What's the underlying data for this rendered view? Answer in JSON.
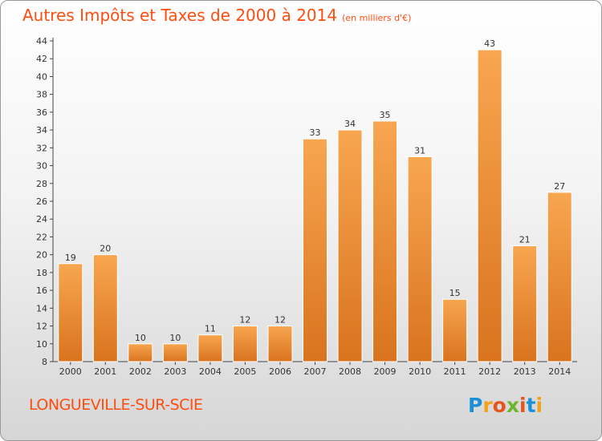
{
  "title": "Autres Impôts et Taxes de 2000 à 2014",
  "unit": "(en milliers d'€)",
  "place": "LONGUEVILLE-SUR-SCIE",
  "logo": {
    "letters": [
      "P",
      "r",
      "o",
      "x",
      "i",
      "t",
      "i"
    ],
    "colors": [
      "#1b8fd8",
      "#f3a21c",
      "#e8541e",
      "#6cb52d",
      "#e8541e",
      "#1b8fd8",
      "#f3a21c"
    ]
  },
  "colors": {
    "title": "#ff4d10",
    "bar_light": "#f8a650",
    "bar_dark": "#d9731e"
  },
  "chart_data": {
    "type": "bar",
    "title": "Autres Impôts et Taxes de 2000 à 2014",
    "categories": [
      "2000",
      "2001",
      "2002",
      "2003",
      "2004",
      "2005",
      "2006",
      "2007",
      "2008",
      "2009",
      "2010",
      "2011",
      "2012",
      "2013",
      "2014"
    ],
    "values": [
      19,
      20,
      10,
      10,
      11,
      12,
      12,
      33,
      34,
      35,
      31,
      15,
      43,
      21,
      27
    ],
    "ylim": [
      8,
      44
    ],
    "yticks": [
      8,
      10,
      12,
      14,
      16,
      18,
      20,
      22,
      24,
      26,
      28,
      30,
      32,
      34,
      36,
      38,
      40,
      42,
      44
    ],
    "grid": false,
    "data_labels": true
  }
}
